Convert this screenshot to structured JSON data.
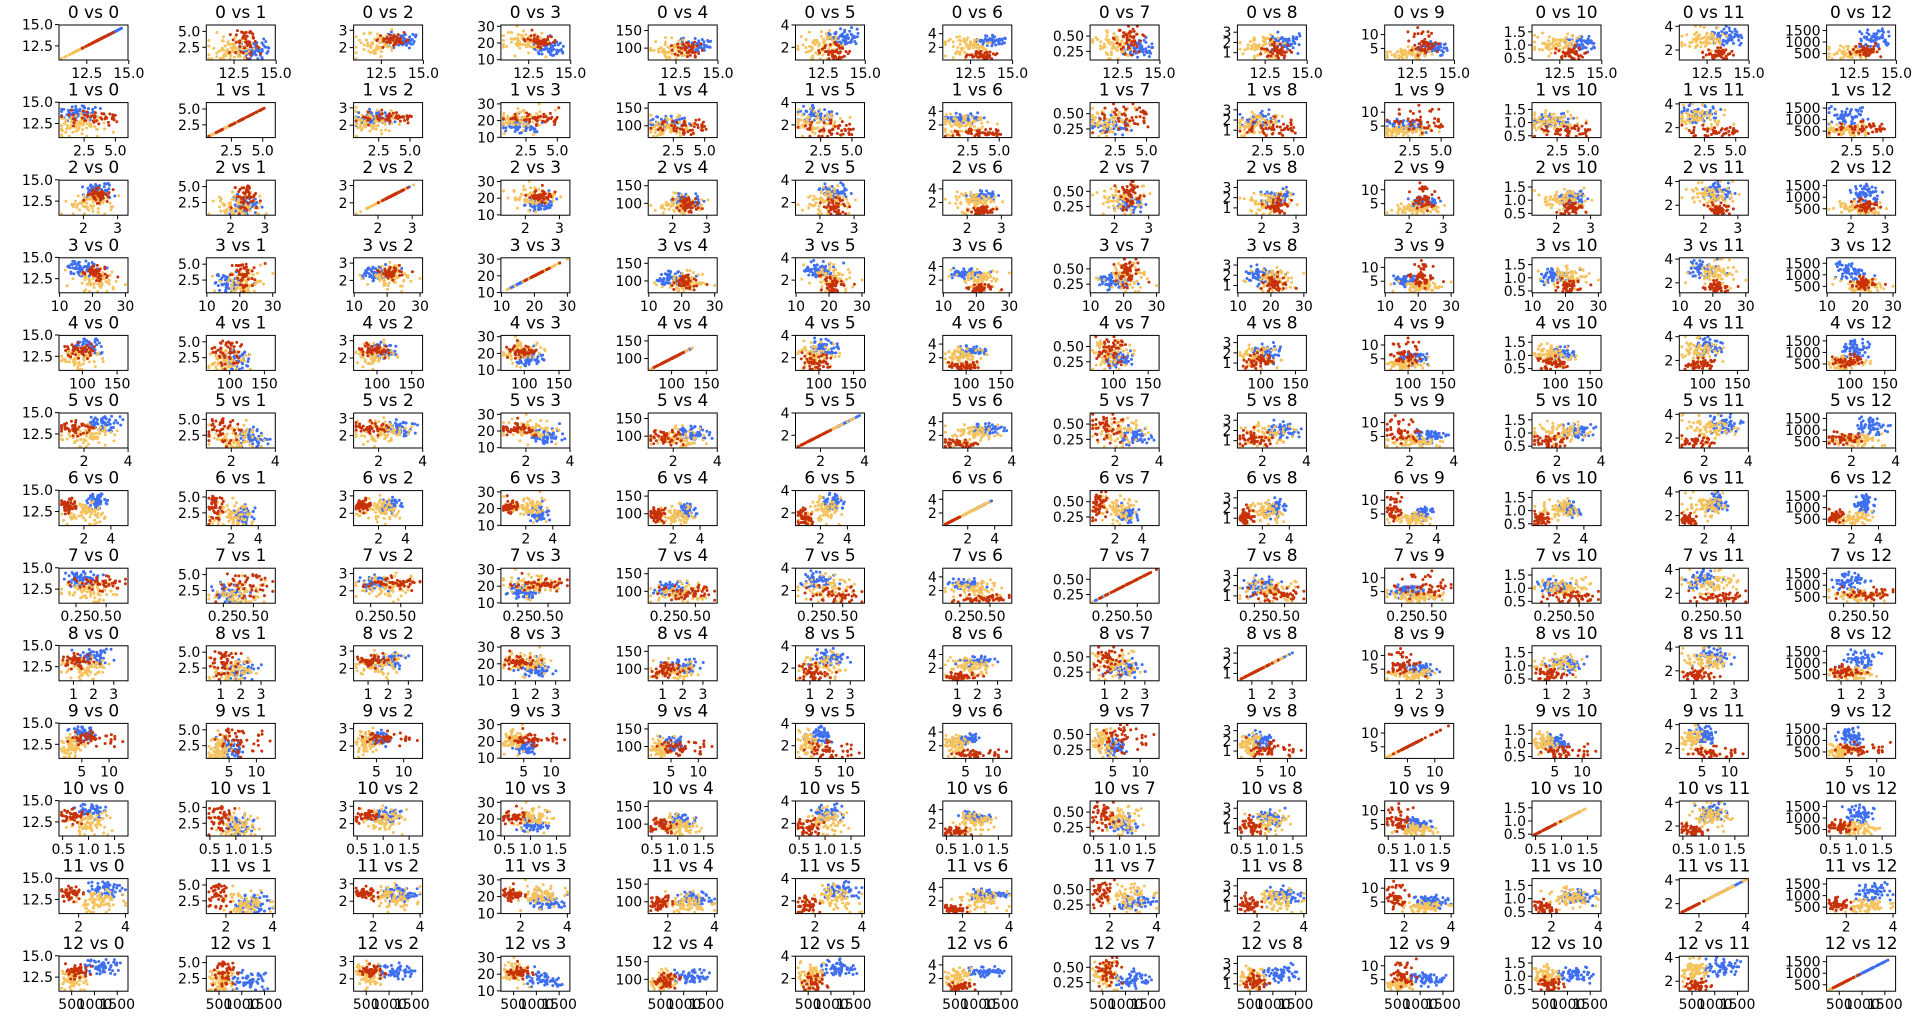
{
  "chart_data": {
    "type": "scatter",
    "layout": "pair-plot",
    "title": "",
    "colors": {
      "class_0": "#3e6ff0",
      "class_1": "#f5c25c",
      "class_2": "#c83208",
      "frame": "#000000"
    },
    "variables": [
      {
        "index": 0,
        "min": 11.0,
        "max": 14.8,
        "ticks": [
          12.5,
          15.0
        ],
        "tick_labels": [
          "12.5",
          "15.0"
        ]
      },
      {
        "index": 1,
        "min": 0.7,
        "max": 5.8,
        "ticks": [
          2.5,
          5.0
        ],
        "tick_labels": [
          "2.5",
          "5.0"
        ]
      },
      {
        "index": 2,
        "min": 1.36,
        "max": 3.23,
        "ticks": [
          2,
          3
        ],
        "tick_labels": [
          "2",
          "3"
        ]
      },
      {
        "index": 3,
        "min": 10.6,
        "max": 30.0,
        "ticks": [
          10,
          20,
          30
        ],
        "tick_labels": [
          "10",
          "20",
          "30"
        ]
      },
      {
        "index": 4,
        "min": 70,
        "max": 162,
        "ticks": [
          100,
          150
        ],
        "tick_labels": [
          "100",
          "150"
        ]
      },
      {
        "index": 5,
        "min": 0.98,
        "max": 3.88,
        "ticks": [
          2,
          4
        ],
        "tick_labels": [
          "2",
          "4"
        ]
      },
      {
        "index": 6,
        "min": 0.34,
        "max": 5.08,
        "ticks": [
          2,
          4
        ],
        "tick_labels": [
          "2",
          "4"
        ]
      },
      {
        "index": 7,
        "min": 0.13,
        "max": 0.66,
        "ticks": [
          0.25,
          0.5
        ],
        "tick_labels": [
          "0.25",
          "0.50"
        ]
      },
      {
        "index": 8,
        "min": 0.41,
        "max": 3.58,
        "ticks": [
          1,
          2,
          3
        ],
        "tick_labels": [
          "1",
          "2",
          "3"
        ]
      },
      {
        "index": 9,
        "min": 1.28,
        "max": 13.0,
        "ticks": [
          5,
          10
        ],
        "tick_labels": [
          "5",
          "10"
        ]
      },
      {
        "index": 10,
        "min": 0.48,
        "max": 1.71,
        "ticks": [
          0.5,
          1.0,
          1.5
        ],
        "tick_labels": [
          "0.5",
          "1.0",
          "1.5"
        ]
      },
      {
        "index": 11,
        "min": 1.27,
        "max": 4.0,
        "ticks": [
          2,
          4
        ],
        "tick_labels": [
          "2",
          "4"
        ]
      },
      {
        "index": 12,
        "min": 278,
        "max": 1680,
        "ticks": [
          500,
          1000,
          1500
        ],
        "tick_labels": [
          "500",
          "1000",
          "1500"
        ]
      }
    ],
    "class_means": [
      [
        13.74,
        2.01,
        2.46,
        17.0,
        106,
        2.84,
        2.98,
        0.29,
        1.9,
        5.5,
        1.06,
        3.16,
        1116
      ],
      [
        12.28,
        1.93,
        2.24,
        20.2,
        94,
        2.26,
        2.08,
        0.36,
        1.63,
        3.1,
        1.06,
        2.79,
        520
      ],
      [
        13.15,
        3.33,
        2.44,
        21.4,
        99,
        1.68,
        0.78,
        0.45,
        1.15,
        7.4,
        0.68,
        1.68,
        630
      ]
    ],
    "class_spreads": [
      [
        0.46,
        0.69,
        0.23,
        2.5,
        10,
        0.34,
        0.4,
        0.07,
        0.41,
        1.2,
        0.12,
        0.36,
        221
      ],
      [
        0.54,
        1.02,
        0.32,
        3.3,
        17,
        0.55,
        0.71,
        0.12,
        0.6,
        0.9,
        0.2,
        0.5,
        157
      ],
      [
        0.53,
        1.09,
        0.18,
        2.3,
        11,
        0.36,
        0.29,
        0.12,
        0.41,
        2.3,
        0.11,
        0.27,
        115
      ]
    ],
    "class_counts": [
      59,
      71,
      48
    ],
    "panels": [
      [
        "0 vs 0",
        "0 vs 1",
        "0 vs 2",
        "0 vs 3",
        "0 vs 4",
        "0 vs 5",
        "0 vs 6",
        "0 vs 7",
        "0 vs 8",
        "0 vs 9",
        "0 vs 10",
        "0 vs 11",
        "0 vs 12"
      ],
      [
        "1 vs 0",
        "1 vs 1",
        "1 vs 2",
        "1 vs 3",
        "1 vs 4",
        "1 vs 5",
        "1 vs 6",
        "1 vs 7",
        "1 vs 8",
        "1 vs 9",
        "1 vs 10",
        "1 vs 11",
        "1 vs 12"
      ],
      [
        "2 vs 0",
        "2 vs 1",
        "2 vs 2",
        "2 vs 3",
        "2 vs 4",
        "2 vs 5",
        "2 vs 6",
        "2 vs 7",
        "2 vs 8",
        "2 vs 9",
        "2 vs 10",
        "2 vs 11",
        "2 vs 12"
      ],
      [
        "3 vs 0",
        "3 vs 1",
        "3 vs 2",
        "3 vs 3",
        "3 vs 4",
        "3 vs 5",
        "3 vs 6",
        "3 vs 7",
        "3 vs 8",
        "3 vs 9",
        "3 vs 10",
        "3 vs 11",
        "3 vs 12"
      ],
      [
        "4 vs 0",
        "4 vs 1",
        "4 vs 2",
        "4 vs 3",
        "4 vs 4",
        "4 vs 5",
        "4 vs 6",
        "4 vs 7",
        "4 vs 8",
        "4 vs 9",
        "4 vs 10",
        "4 vs 11",
        "4 vs 12"
      ],
      [
        "5 vs 0",
        "5 vs 1",
        "5 vs 2",
        "5 vs 3",
        "5 vs 4",
        "5 vs 5",
        "5 vs 6",
        "5 vs 7",
        "5 vs 8",
        "5 vs 9",
        "5 vs 10",
        "5 vs 11",
        "5 vs 12"
      ],
      [
        "6 vs 0",
        "6 vs 1",
        "6 vs 2",
        "6 vs 3",
        "6 vs 4",
        "6 vs 5",
        "6 vs 6",
        "6 vs 7",
        "6 vs 8",
        "6 vs 9",
        "6 vs 10",
        "6 vs 11",
        "6 vs 12"
      ],
      [
        "7 vs 0",
        "7 vs 1",
        "7 vs 2",
        "7 vs 3",
        "7 vs 4",
        "7 vs 5",
        "7 vs 6",
        "7 vs 7",
        "7 vs 8",
        "7 vs 9",
        "7 vs 10",
        "7 vs 11",
        "7 vs 12"
      ],
      [
        "8 vs 0",
        "8 vs 1",
        "8 vs 2",
        "8 vs 3",
        "8 vs 4",
        "8 vs 5",
        "8 vs 6",
        "8 vs 7",
        "8 vs 8",
        "8 vs 9",
        "8 vs 10",
        "8 vs 11",
        "8 vs 12"
      ],
      [
        "9 vs 0",
        "9 vs 1",
        "9 vs 2",
        "9 vs 3",
        "9 vs 4",
        "9 vs 5",
        "9 vs 6",
        "9 vs 7",
        "9 vs 8",
        "9 vs 9",
        "9 vs 10",
        "9 vs 11",
        "9 vs 12"
      ],
      [
        "10 vs 0",
        "10 vs 1",
        "10 vs 2",
        "10 vs 3",
        "10 vs 4",
        "10 vs 5",
        "10 vs 6",
        "10 vs 7",
        "10 vs 8",
        "10 vs 9",
        "10 vs 10",
        "10 vs 11",
        "10 vs 12"
      ],
      [
        "11 vs 0",
        "11 vs 1",
        "11 vs 2",
        "11 vs 3",
        "11 vs 4",
        "11 vs 5",
        "11 vs 6",
        "11 vs 7",
        "11 vs 8",
        "11 vs 9",
        "11 vs 10",
        "11 vs 11",
        "11 vs 12"
      ],
      [
        "12 vs 0",
        "12 vs 1",
        "12 vs 2",
        "12 vs 3",
        "12 vs 4",
        "12 vs 5",
        "12 vs 6",
        "12 vs 7",
        "12 vs 8",
        "12 vs 9",
        "12 vs 10",
        "12 vs 11",
        "12 vs 12"
      ]
    ],
    "x_variable": "row",
    "y_variable": "column",
    "grid": false,
    "legend": "none"
  }
}
